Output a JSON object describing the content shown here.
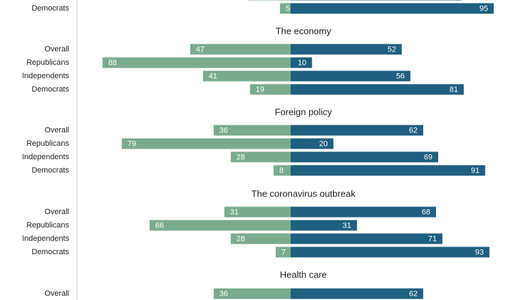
{
  "chart_data": {
    "type": "bar",
    "orientation": "horizontal-diverging",
    "colors": {
      "left": "#7aab8e",
      "right": "#1f5f7f"
    },
    "sections": [
      {
        "title": "",
        "rows": [
          {
            "label": "",
            "left": 20,
            "right": 80
          },
          {
            "label": "Democrats",
            "left": 5,
            "right": 95
          }
        ]
      },
      {
        "title": "The economy",
        "rows": [
          {
            "label": "Overall",
            "left": 47,
            "right": 52
          },
          {
            "label": "Republicans",
            "left": 88,
            "right": 10
          },
          {
            "label": "Independents",
            "left": 41,
            "right": 56
          },
          {
            "label": "Democrats",
            "left": 19,
            "right": 81
          }
        ]
      },
      {
        "title": "Foreign policy",
        "rows": [
          {
            "label": "Overall",
            "left": 36,
            "right": 62
          },
          {
            "label": "Republicans",
            "left": 79,
            "right": 20
          },
          {
            "label": "Independents",
            "left": 28,
            "right": 69
          },
          {
            "label": "Democrats",
            "left": 8,
            "right": 91
          }
        ]
      },
      {
        "title": "The coronavirus outbreak",
        "rows": [
          {
            "label": "Overall",
            "left": 31,
            "right": 68
          },
          {
            "label": "Republicans",
            "left": 66,
            "right": 31
          },
          {
            "label": "Independents",
            "left": 28,
            "right": 71
          },
          {
            "label": "Democrats",
            "left": 7,
            "right": 93
          }
        ]
      },
      {
        "title": "Health care",
        "rows": [
          {
            "label": "Overall",
            "left": 36,
            "right": 62
          }
        ]
      }
    ]
  }
}
